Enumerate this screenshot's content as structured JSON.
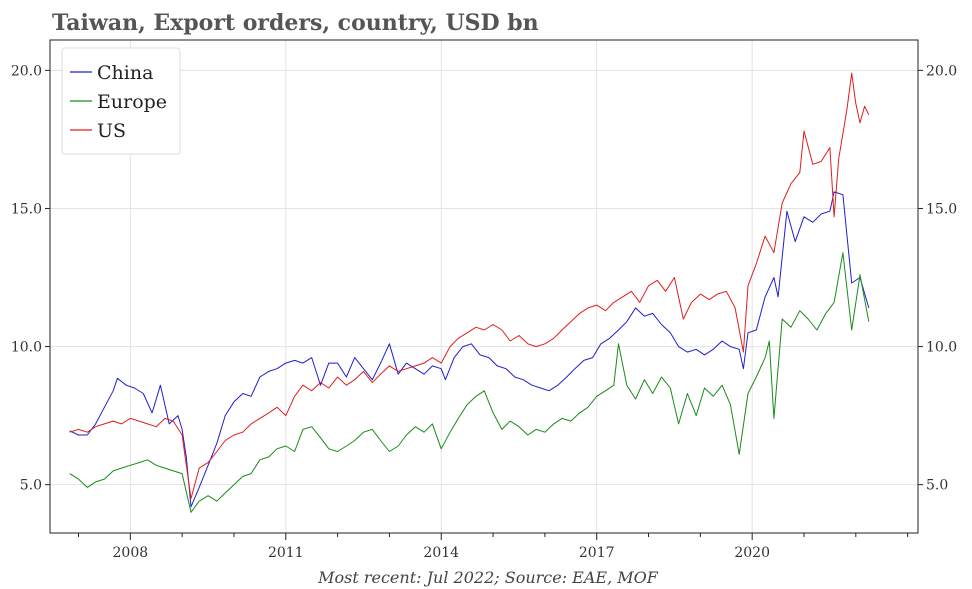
{
  "chart_data": {
    "type": "line",
    "title": "Taiwan, Export orders, country, USD bn",
    "source": "Most recent: Jul 2022; Source: EAE, MOF",
    "xlim": [
      2006.45,
      2023.2
    ],
    "ylim": [
      3.25,
      21.1
    ],
    "x_ticks": [
      2008,
      2011,
      2014,
      2017,
      2020
    ],
    "y_ticks": [
      5.0,
      10.0,
      15.0,
      20.0
    ],
    "y_ticks_right": [
      5.0,
      10.0,
      15.0,
      20.0
    ],
    "grid": true,
    "legend_position": "top-left",
    "series": [
      {
        "name": "China",
        "color": "#1f1fd0",
        "points": [
          [
            2006.83,
            6.95
          ],
          [
            2007.0,
            6.8
          ],
          [
            2007.17,
            6.8
          ],
          [
            2007.33,
            7.2
          ],
          [
            2007.5,
            7.8
          ],
          [
            2007.67,
            8.4
          ],
          [
            2007.75,
            8.85
          ],
          [
            2007.92,
            8.6
          ],
          [
            2008.08,
            8.5
          ],
          [
            2008.25,
            8.3
          ],
          [
            2008.42,
            7.6
          ],
          [
            2008.58,
            8.6
          ],
          [
            2008.75,
            7.2
          ],
          [
            2008.92,
            7.5
          ],
          [
            2009.0,
            7.0
          ],
          [
            2009.08,
            6.0
          ],
          [
            2009.17,
            4.2
          ],
          [
            2009.33,
            4.9
          ],
          [
            2009.5,
            5.7
          ],
          [
            2009.67,
            6.5
          ],
          [
            2009.83,
            7.5
          ],
          [
            2010.0,
            8.0
          ],
          [
            2010.17,
            8.3
          ],
          [
            2010.33,
            8.2
          ],
          [
            2010.5,
            8.9
          ],
          [
            2010.67,
            9.1
          ],
          [
            2010.83,
            9.2
          ],
          [
            2011.0,
            9.4
          ],
          [
            2011.17,
            9.5
          ],
          [
            2011.33,
            9.4
          ],
          [
            2011.5,
            9.6
          ],
          [
            2011.67,
            8.6
          ],
          [
            2011.83,
            9.4
          ],
          [
            2012.0,
            9.4
          ],
          [
            2012.17,
            8.9
          ],
          [
            2012.33,
            9.6
          ],
          [
            2012.5,
            9.2
          ],
          [
            2012.67,
            8.8
          ],
          [
            2012.83,
            9.4
          ],
          [
            2013.0,
            10.1
          ],
          [
            2013.17,
            9.0
          ],
          [
            2013.33,
            9.4
          ],
          [
            2013.5,
            9.2
          ],
          [
            2013.67,
            9.0
          ],
          [
            2013.83,
            9.3
          ],
          [
            2014.0,
            9.2
          ],
          [
            2014.08,
            8.8
          ],
          [
            2014.25,
            9.6
          ],
          [
            2014.42,
            10.0
          ],
          [
            2014.58,
            10.1
          ],
          [
            2014.75,
            9.7
          ],
          [
            2014.92,
            9.6
          ],
          [
            2015.08,
            9.3
          ],
          [
            2015.25,
            9.2
          ],
          [
            2015.42,
            8.9
          ],
          [
            2015.58,
            8.8
          ],
          [
            2015.75,
            8.6
          ],
          [
            2015.92,
            8.5
          ],
          [
            2016.08,
            8.4
          ],
          [
            2016.25,
            8.6
          ],
          [
            2016.42,
            8.9
          ],
          [
            2016.58,
            9.2
          ],
          [
            2016.75,
            9.5
          ],
          [
            2016.92,
            9.6
          ],
          [
            2017.08,
            10.1
          ],
          [
            2017.25,
            10.3
          ],
          [
            2017.42,
            10.6
          ],
          [
            2017.58,
            10.9
          ],
          [
            2017.75,
            11.4
          ],
          [
            2017.92,
            11.1
          ],
          [
            2018.08,
            11.2
          ],
          [
            2018.25,
            10.8
          ],
          [
            2018.42,
            10.5
          ],
          [
            2018.58,
            10.0
          ],
          [
            2018.75,
            9.8
          ],
          [
            2018.92,
            9.9
          ],
          [
            2019.08,
            9.7
          ],
          [
            2019.25,
            9.9
          ],
          [
            2019.42,
            10.2
          ],
          [
            2019.58,
            10.0
          ],
          [
            2019.75,
            9.9
          ],
          [
            2019.83,
            9.2
          ],
          [
            2019.92,
            10.5
          ],
          [
            2020.08,
            10.6
          ],
          [
            2020.25,
            11.8
          ],
          [
            2020.42,
            12.5
          ],
          [
            2020.5,
            11.8
          ],
          [
            2020.67,
            14.9
          ],
          [
            2020.83,
            13.8
          ],
          [
            2021.0,
            14.7
          ],
          [
            2021.17,
            14.5
          ],
          [
            2021.33,
            14.8
          ],
          [
            2021.5,
            14.9
          ],
          [
            2021.58,
            15.6
          ],
          [
            2021.75,
            15.5
          ],
          [
            2021.92,
            12.3
          ],
          [
            2022.08,
            12.5
          ],
          [
            2022.25,
            11.4
          ]
        ]
      },
      {
        "name": "Europe",
        "color": "#1a8a1a",
        "points": [
          [
            2006.83,
            5.4
          ],
          [
            2007.0,
            5.2
          ],
          [
            2007.17,
            4.9
          ],
          [
            2007.33,
            5.1
          ],
          [
            2007.5,
            5.2
          ],
          [
            2007.67,
            5.5
          ],
          [
            2007.83,
            5.6
          ],
          [
            2008.0,
            5.7
          ],
          [
            2008.17,
            5.8
          ],
          [
            2008.33,
            5.9
          ],
          [
            2008.5,
            5.7
          ],
          [
            2008.67,
            5.6
          ],
          [
            2008.83,
            5.5
          ],
          [
            2009.0,
            5.4
          ],
          [
            2009.17,
            4.0
          ],
          [
            2009.33,
            4.4
          ],
          [
            2009.5,
            4.6
          ],
          [
            2009.67,
            4.4
          ],
          [
            2009.83,
            4.7
          ],
          [
            2010.0,
            5.0
          ],
          [
            2010.17,
            5.3
          ],
          [
            2010.33,
            5.4
          ],
          [
            2010.5,
            5.9
          ],
          [
            2010.67,
            6.0
          ],
          [
            2010.83,
            6.3
          ],
          [
            2011.0,
            6.4
          ],
          [
            2011.17,
            6.2
          ],
          [
            2011.33,
            7.0
          ],
          [
            2011.5,
            7.1
          ],
          [
            2011.67,
            6.7
          ],
          [
            2011.83,
            6.3
          ],
          [
            2012.0,
            6.2
          ],
          [
            2012.17,
            6.4
          ],
          [
            2012.33,
            6.6
          ],
          [
            2012.5,
            6.9
          ],
          [
            2012.67,
            7.0
          ],
          [
            2012.83,
            6.6
          ],
          [
            2013.0,
            6.2
          ],
          [
            2013.17,
            6.4
          ],
          [
            2013.33,
            6.8
          ],
          [
            2013.5,
            7.1
          ],
          [
            2013.67,
            6.9
          ],
          [
            2013.83,
            7.2
          ],
          [
            2014.0,
            6.3
          ],
          [
            2014.17,
            6.9
          ],
          [
            2014.33,
            7.4
          ],
          [
            2014.5,
            7.9
          ],
          [
            2014.67,
            8.2
          ],
          [
            2014.83,
            8.4
          ],
          [
            2015.0,
            7.6
          ],
          [
            2015.17,
            7.0
          ],
          [
            2015.33,
            7.3
          ],
          [
            2015.5,
            7.1
          ],
          [
            2015.67,
            6.8
          ],
          [
            2015.83,
            7.0
          ],
          [
            2016.0,
            6.9
          ],
          [
            2016.17,
            7.2
          ],
          [
            2016.33,
            7.4
          ],
          [
            2016.5,
            7.3
          ],
          [
            2016.67,
            7.6
          ],
          [
            2016.83,
            7.8
          ],
          [
            2017.0,
            8.2
          ],
          [
            2017.17,
            8.4
          ],
          [
            2017.33,
            8.6
          ],
          [
            2017.42,
            10.1
          ],
          [
            2017.58,
            8.6
          ],
          [
            2017.75,
            8.1
          ],
          [
            2017.92,
            8.8
          ],
          [
            2018.08,
            8.3
          ],
          [
            2018.25,
            8.9
          ],
          [
            2018.42,
            8.5
          ],
          [
            2018.58,
            7.2
          ],
          [
            2018.75,
            8.3
          ],
          [
            2018.92,
            7.5
          ],
          [
            2019.08,
            8.5
          ],
          [
            2019.25,
            8.2
          ],
          [
            2019.42,
            8.6
          ],
          [
            2019.58,
            7.9
          ],
          [
            2019.75,
            6.1
          ],
          [
            2019.92,
            8.3
          ],
          [
            2020.08,
            8.9
          ],
          [
            2020.25,
            9.6
          ],
          [
            2020.33,
            10.2
          ],
          [
            2020.42,
            7.4
          ],
          [
            2020.58,
            11.0
          ],
          [
            2020.75,
            10.7
          ],
          [
            2020.92,
            11.3
          ],
          [
            2021.08,
            11.0
          ],
          [
            2021.25,
            10.6
          ],
          [
            2021.42,
            11.2
          ],
          [
            2021.58,
            11.6
          ],
          [
            2021.75,
            13.4
          ],
          [
            2021.92,
            10.6
          ],
          [
            2022.08,
            12.6
          ],
          [
            2022.25,
            10.9
          ]
        ]
      },
      {
        "name": "US",
        "color": "#dd1f1f",
        "points": [
          [
            2006.83,
            6.9
          ],
          [
            2007.0,
            7.0
          ],
          [
            2007.17,
            6.9
          ],
          [
            2007.33,
            7.1
          ],
          [
            2007.5,
            7.2
          ],
          [
            2007.67,
            7.3
          ],
          [
            2007.83,
            7.2
          ],
          [
            2008.0,
            7.4
          ],
          [
            2008.17,
            7.3
          ],
          [
            2008.33,
            7.2
          ],
          [
            2008.5,
            7.1
          ],
          [
            2008.67,
            7.4
          ],
          [
            2008.83,
            7.3
          ],
          [
            2009.0,
            6.8
          ],
          [
            2009.17,
            4.5
          ],
          [
            2009.33,
            5.6
          ],
          [
            2009.5,
            5.8
          ],
          [
            2009.67,
            6.2
          ],
          [
            2009.83,
            6.6
          ],
          [
            2010.0,
            6.8
          ],
          [
            2010.17,
            6.9
          ],
          [
            2010.33,
            7.2
          ],
          [
            2010.5,
            7.4
          ],
          [
            2010.67,
            7.6
          ],
          [
            2010.83,
            7.8
          ],
          [
            2011.0,
            7.5
          ],
          [
            2011.17,
            8.2
          ],
          [
            2011.33,
            8.6
          ],
          [
            2011.5,
            8.4
          ],
          [
            2011.67,
            8.7
          ],
          [
            2011.83,
            8.5
          ],
          [
            2012.0,
            8.9
          ],
          [
            2012.17,
            8.6
          ],
          [
            2012.33,
            8.8
          ],
          [
            2012.5,
            9.1
          ],
          [
            2012.67,
            8.7
          ],
          [
            2012.83,
            9.0
          ],
          [
            2013.0,
            9.3
          ],
          [
            2013.17,
            9.1
          ],
          [
            2013.33,
            9.2
          ],
          [
            2013.5,
            9.3
          ],
          [
            2013.67,
            9.4
          ],
          [
            2013.83,
            9.6
          ],
          [
            2014.0,
            9.4
          ],
          [
            2014.17,
            10.0
          ],
          [
            2014.33,
            10.3
          ],
          [
            2014.5,
            10.5
          ],
          [
            2014.67,
            10.7
          ],
          [
            2014.83,
            10.6
          ],
          [
            2015.0,
            10.8
          ],
          [
            2015.17,
            10.6
          ],
          [
            2015.33,
            10.2
          ],
          [
            2015.5,
            10.4
          ],
          [
            2015.67,
            10.1
          ],
          [
            2015.83,
            10.0
          ],
          [
            2016.0,
            10.1
          ],
          [
            2016.17,
            10.3
          ],
          [
            2016.33,
            10.6
          ],
          [
            2016.5,
            10.9
          ],
          [
            2016.67,
            11.2
          ],
          [
            2016.83,
            11.4
          ],
          [
            2017.0,
            11.5
          ],
          [
            2017.17,
            11.3
          ],
          [
            2017.33,
            11.6
          ],
          [
            2017.5,
            11.8
          ],
          [
            2017.67,
            12.0
          ],
          [
            2017.83,
            11.6
          ],
          [
            2018.0,
            12.2
          ],
          [
            2018.17,
            12.4
          ],
          [
            2018.33,
            12.0
          ],
          [
            2018.5,
            12.5
          ],
          [
            2018.67,
            11.0
          ],
          [
            2018.83,
            11.6
          ],
          [
            2019.0,
            11.9
          ],
          [
            2019.17,
            11.7
          ],
          [
            2019.33,
            11.9
          ],
          [
            2019.5,
            12.0
          ],
          [
            2019.67,
            11.4
          ],
          [
            2019.83,
            9.8
          ],
          [
            2019.92,
            12.2
          ],
          [
            2020.08,
            13.0
          ],
          [
            2020.25,
            14.0
          ],
          [
            2020.42,
            13.4
          ],
          [
            2020.58,
            15.2
          ],
          [
            2020.75,
            15.9
          ],
          [
            2020.92,
            16.3
          ],
          [
            2021.0,
            17.8
          ],
          [
            2021.17,
            16.6
          ],
          [
            2021.33,
            16.7
          ],
          [
            2021.5,
            17.2
          ],
          [
            2021.58,
            14.7
          ],
          [
            2021.67,
            16.8
          ],
          [
            2021.83,
            18.6
          ],
          [
            2021.92,
            19.9
          ],
          [
            2022.0,
            18.8
          ],
          [
            2022.08,
            18.1
          ],
          [
            2022.17,
            18.7
          ],
          [
            2022.25,
            18.4
          ]
        ]
      }
    ]
  }
}
